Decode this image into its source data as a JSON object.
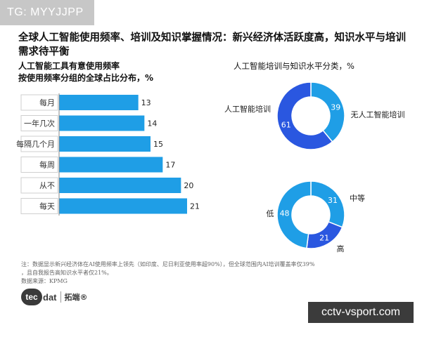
{
  "watermark_top": "TG: MYYJJPP",
  "watermark_bottom": "cctv-vsport.com",
  "title": "全球人工智能使用频率、培训及知识掌握情况：新兴经济体活跃度高，知识水平与培训需求待平衡",
  "footnote_line1": "注：数据显示新兴经济体在AI使用频率上领先（如印度、尼日利亚使用率超90%），但全球范围内AI培训覆盖率仅39%",
  "footnote_line2": "，且自我报告高知识水平者仅21%。",
  "source": "数据来源：KPMG",
  "logo": {
    "mark": "tec",
    "text": "dat",
    "cn": "拓端®"
  },
  "colors": {
    "bar": "#1f9ee6",
    "donut_light": "#1f9ee6",
    "donut_dark": "#2a57e0"
  },
  "chart_data": [
    {
      "type": "bar",
      "title": "人工智能工具有意使用频率",
      "subtitle": "按使用频率分组的全球占比分布，%",
      "categories": [
        "每月",
        "一年几次",
        "每隔几个月",
        "每周",
        "从不",
        "每天"
      ],
      "values": [
        13,
        14,
        15,
        17,
        20,
        21
      ],
      "orientation": "horizontal"
    },
    {
      "type": "pie",
      "title": "人工智能培训与知识水平分类，%",
      "donut": true,
      "slices": [
        {
          "label": "人工智能培训",
          "value": 39,
          "color": "#1f9ee6"
        },
        {
          "label": "无人工智能培训",
          "value": 61,
          "color": "#2a57e0"
        }
      ]
    },
    {
      "type": "pie",
      "donut": true,
      "slices": [
        {
          "label": "中等",
          "value": 31,
          "color": "#1f9ee6"
        },
        {
          "label": "高",
          "value": 21,
          "color": "#2a57e0"
        },
        {
          "label": "低",
          "value": 48,
          "color": "#1f9ee6"
        }
      ]
    }
  ]
}
